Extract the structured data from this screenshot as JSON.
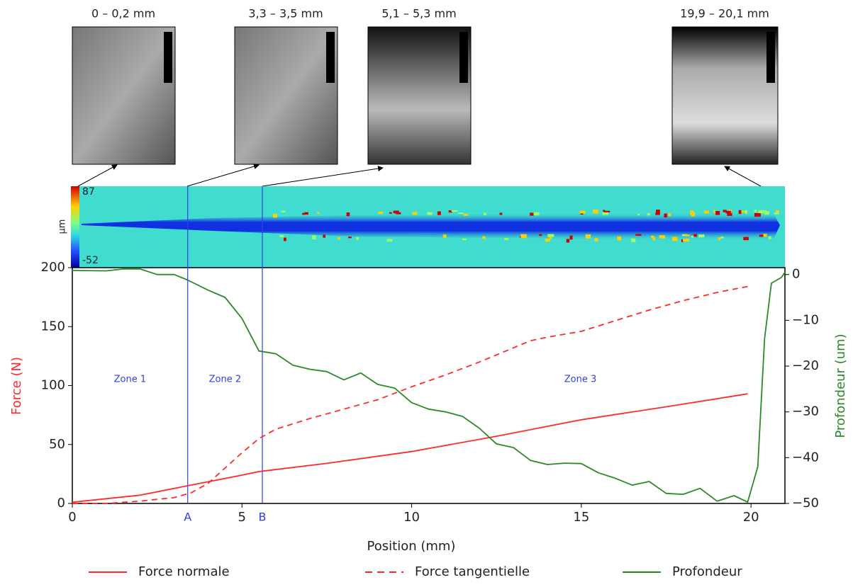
{
  "chart_data": {
    "type": "line",
    "xlabel": "Position (mm)",
    "ylabel": "Force (N)",
    "y2label": "Profondeur (um)",
    "xlim": [
      0,
      21
    ],
    "xticks": [
      0,
      5,
      10,
      15,
      20
    ],
    "ylim": [
      0,
      200
    ],
    "yticks": [
      0,
      50,
      100,
      150,
      200
    ],
    "y2lim": [
      -50,
      1.5
    ],
    "y2ticks": [
      0,
      {
        "value": -10,
        "label": "−10"
      },
      {
        "value": -20,
        "label": "−20"
      },
      {
        "value": -30,
        "label": "−30"
      },
      {
        "value": -40,
        "label": "−40"
      },
      {
        "value": -50,
        "label": "−50"
      }
    ],
    "markers": [
      {
        "label": "A",
        "x": 3.4
      },
      {
        "label": "B",
        "x": 5.6
      }
    ],
    "zones": [
      "Zone 1",
      "Zone 2",
      "Zone 3"
    ],
    "series": [
      {
        "name": "Force normale",
        "color": "#ff2a2a",
        "dash": false,
        "x": [
          0,
          2,
          3.4,
          5,
          5.5,
          7.5,
          10,
          12.5,
          15,
          17.5,
          19.9
        ],
        "values": [
          1,
          7,
          15,
          24,
          27,
          34,
          44,
          57,
          71,
          82,
          93
        ]
      },
      {
        "name": "Force tangentielle",
        "color": "#ff2a2a",
        "dash": true,
        "x": [
          0,
          1,
          2,
          3,
          3.5,
          4,
          4.5,
          5,
          5.5,
          6,
          7,
          8,
          9,
          10,
          11,
          12,
          13,
          13.5,
          14,
          15,
          16,
          17,
          18,
          19,
          19.9
        ],
        "values": [
          0,
          0,
          2,
          5,
          9,
          17,
          30,
          43,
          55,
          63,
          72,
          80,
          88,
          99,
          109,
          120,
          132,
          138,
          141,
          146,
          155,
          164,
          172,
          179,
          184
        ]
      },
      {
        "name": "Profondeur",
        "color": "#2a8a2a",
        "dash": false,
        "axis": "y2",
        "x": [
          0,
          1,
          1.5,
          2,
          2.5,
          3,
          3.4,
          4,
          4.5,
          5,
          5.5,
          6,
          6.5,
          7,
          7.5,
          8,
          8.5,
          9,
          9.5,
          10,
          10.5,
          11,
          11.5,
          12,
          12.5,
          13,
          13.5,
          14,
          14.5,
          15,
          15.5,
          16,
          16.5,
          17,
          17.5,
          18,
          18.5,
          19,
          19.5,
          19.9,
          20.2,
          20.4,
          20.6,
          20.9,
          21
        ],
        "values": [
          0.9,
          0.8,
          1.2,
          1.2,
          0,
          0,
          -1.2,
          -3.4,
          -5,
          -9.6,
          -16.7,
          -17.3,
          -19.8,
          -20.7,
          -21.2,
          -23,
          -21.5,
          -24,
          -24.8,
          -28,
          -29.4,
          -30,
          -31,
          -33.6,
          -37,
          -37.8,
          -40.6,
          -41.5,
          -41.2,
          -41.3,
          -43.3,
          -44.5,
          -46,
          -45.2,
          -47.8,
          -48,
          -46.7,
          -49.5,
          -48.3,
          -49.7,
          -42,
          -14,
          -1.9,
          -0.6,
          0.5
        ]
      }
    ]
  },
  "surface_map": {
    "unit": "µm",
    "max": 87,
    "min": -52
  },
  "micrographs": [
    "0 – 0,2 mm",
    "3,3 – 3,5 mm",
    "5,1 – 5,3 mm",
    "19,9 – 20,1 mm"
  ]
}
